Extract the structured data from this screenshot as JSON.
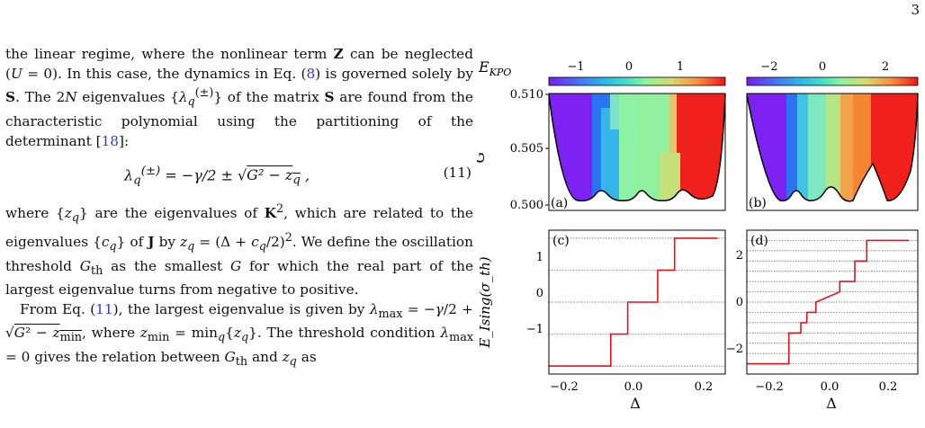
{
  "page_number": "3",
  "body": {
    "para1": "the linear regime, where the nonlinear term Z can be neglected (U = 0). In this case, the dynamics in Eq. (8) is governed solely by S. The 2N eigenvalues {λq(±)} of the matrix S are found from the characteristic polynomial using the partitioning of the determinant [18]:",
    "para1_ref_eq": "8",
    "para1_ref_cite": "18",
    "equation": "λq(±) = −γ/2 ± √(G² − zq) ,",
    "equation_number": "(11)",
    "para2": "where {zq} are the eigenvalues of K², which are related to the eigenvalues {cq} of J by zq = (Δ + cq/2)². We define the oscillation threshold Gth as the smallest G for which the real part of the largest eigenvalue turns from negative to positive.",
    "para3": "From Eq. (11), the largest eigenvalue is given by λmax = −γ/2 + √(G² − zmin), where zmin = minq{zq}. The threshold condition λmax = 0 gives the relation between Gth and zq as",
    "para3_ref_eq": "11"
  },
  "figure": {
    "colorbar_label": "E_KPO",
    "colorbar_a_ticks": [
      "−1",
      "0",
      "1"
    ],
    "colorbar_b_ticks": [
      "−2",
      "0",
      "2"
    ],
    "panel_labels": [
      "(a)",
      "(b)",
      "(c)",
      "(d)"
    ],
    "top_ylabel": "G",
    "top_yticks": [
      "0.510",
      "0.505",
      "0.500"
    ],
    "bottom_ylabel": "E_Ising(σ_th)",
    "c_yticks": [
      "1",
      "0",
      "−1"
    ],
    "d_yticks": [
      "2",
      "0",
      "−2"
    ],
    "xlabel": "Δ",
    "c_xticks": [
      "−0.2",
      "0.0",
      "0.2"
    ],
    "d_xticks": [
      "−0.2",
      "0.0",
      "0.2"
    ],
    "colors": {
      "step_line": "#e0141e",
      "grid": "#555555",
      "boundary": "#000000"
    }
  },
  "chart_data": [
    {
      "panel": "(c)",
      "type": "line",
      "xlabel": "Δ",
      "ylabel": "E_Ising(σ_th)",
      "xlim": [
        -0.25,
        0.22
      ],
      "ylim": [
        -1.8,
        1.8
      ],
      "x": [
        -0.25,
        -0.085,
        -0.085,
        -0.04,
        -0.04,
        0.04,
        0.04,
        0.085,
        0.085,
        0.2
      ],
      "y": [
        -1.6,
        -1.6,
        -0.8,
        -0.8,
        0.0,
        0.0,
        0.8,
        0.8,
        1.6,
        1.6
      ],
      "gridlines_y": [
        -1.6,
        -0.8,
        0.0,
        0.8,
        1.6
      ]
    },
    {
      "panel": "(d)",
      "type": "line",
      "xlabel": "Δ",
      "ylabel": "E_Ising(σ_th)",
      "xlim": [
        -0.27,
        0.3
      ],
      "ylim": [
        -2.8,
        2.8
      ],
      "x": [
        -0.27,
        -0.13,
        -0.13,
        -0.09,
        -0.09,
        -0.07,
        -0.07,
        -0.04,
        -0.04,
        0.04,
        0.04,
        0.09,
        0.09,
        0.13,
        0.13,
        0.27
      ],
      "y": [
        -2.4,
        -2.4,
        -1.2,
        -1.2,
        -0.8,
        -0.8,
        -0.4,
        -0.4,
        0.0,
        0.4,
        0.8,
        0.8,
        1.6,
        1.6,
        2.4,
        2.4
      ],
      "gridlines_y": [
        -2.4,
        -2.0,
        -1.6,
        -1.2,
        -0.8,
        -0.4,
        0.0,
        0.4,
        0.8,
        1.2,
        1.6,
        2.0,
        2.4
      ]
    }
  ]
}
